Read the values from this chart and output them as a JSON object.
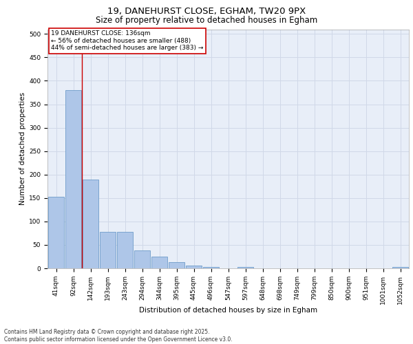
{
  "title_line1": "19, DANEHURST CLOSE, EGHAM, TW20 9PX",
  "title_line2": "Size of property relative to detached houses in Egham",
  "xlabel": "Distribution of detached houses by size in Egham",
  "ylabel": "Number of detached properties",
  "categories": [
    "41sqm",
    "92sqm",
    "142sqm",
    "193sqm",
    "243sqm",
    "294sqm",
    "344sqm",
    "395sqm",
    "445sqm",
    "496sqm",
    "547sqm",
    "597sqm",
    "648sqm",
    "698sqm",
    "749sqm",
    "799sqm",
    "850sqm",
    "900sqm",
    "951sqm",
    "1001sqm",
    "1052sqm"
  ],
  "values": [
    152,
    380,
    190,
    78,
    78,
    38,
    25,
    13,
    6,
    3,
    0,
    3,
    0,
    0,
    0,
    0,
    0,
    0,
    0,
    0,
    3
  ],
  "bar_color": "#aec6e8",
  "bar_edge_color": "#5a8fc2",
  "grid_color": "#d0d8e8",
  "background_color": "#e8eef8",
  "vline_x_index": 1.5,
  "vline_color": "#cc0000",
  "annotation_line1": "19 DANEHURST CLOSE: 136sqm",
  "annotation_line2": "← 56% of detached houses are smaller (488)",
  "annotation_line3": "44% of semi-detached houses are larger (383) →",
  "annotation_box_color": "#cc0000",
  "footer_text": "Contains HM Land Registry data © Crown copyright and database right 2025.\nContains public sector information licensed under the Open Government Licence v3.0.",
  "ylim": [
    0,
    510
  ],
  "yticks": [
    0,
    50,
    100,
    150,
    200,
    250,
    300,
    350,
    400,
    450,
    500
  ],
  "title_fontsize": 9.5,
  "subtitle_fontsize": 8.5,
  "axis_label_fontsize": 7.5,
  "tick_fontsize": 6.5,
  "annotation_fontsize": 6.5,
  "footer_fontsize": 5.5
}
